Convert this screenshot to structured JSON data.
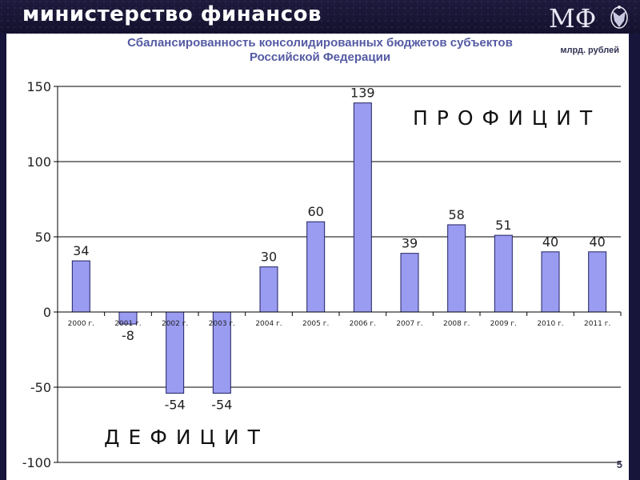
{
  "header": {
    "ministry_name": "министерство финансов",
    "logo_text": "МФ"
  },
  "page_number": "5",
  "unit_label": "млрд. рублей",
  "colors": {
    "banner": "#1b1839",
    "bar_fill": "#9a9cf2",
    "bar_stroke": "#202060",
    "title": "#545aa3"
  },
  "chart_data": {
    "type": "bar",
    "title_lines": [
      "Сбалансированность консолидированных бюджетов субъектов",
      "Российской Федерации"
    ],
    "categories": [
      "2000 г.",
      "2001 г.",
      "2002 г.",
      "2003 г.",
      "2004 г.",
      "2005 г.",
      "2006 г.",
      "2007 г.",
      "2008 г.",
      "2009 г.",
      "2010 г.",
      "2011 г."
    ],
    "values": [
      34,
      -8,
      -54,
      -54,
      30,
      60,
      139,
      39,
      58,
      51,
      40,
      40
    ],
    "data_labels": [
      "34",
      "-8",
      "-54",
      "-54",
      "30",
      "60",
      "139",
      "39",
      "58",
      "51",
      "40",
      "40"
    ],
    "ylim": [
      -100,
      150
    ],
    "yticks": [
      -100,
      -50,
      0,
      50,
      100,
      150
    ],
    "grid": true,
    "annotations": {
      "surplus": "ПРОФИЦИТ",
      "deficit": "ДЕФИЦИТ"
    }
  }
}
